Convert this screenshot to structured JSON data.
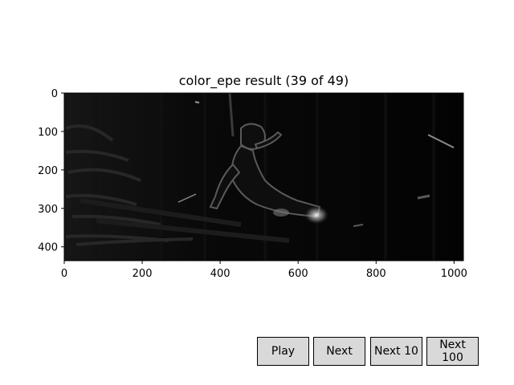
{
  "figure": {
    "title": "color_epe result (39 of 49)",
    "image_description_icon": "error-heatmap-image"
  },
  "axes": {
    "x_ticks": [
      "0",
      "200",
      "400",
      "600",
      "800",
      "1000"
    ],
    "y_ticks": [
      "0",
      "100",
      "200",
      "300",
      "400"
    ],
    "x_tick_values": [
      0,
      200,
      400,
      600,
      800,
      1000
    ],
    "y_tick_values": [
      0,
      100,
      200,
      300,
      400
    ],
    "x_range": [
      0,
      1024
    ],
    "y_range": [
      0,
      436
    ]
  },
  "controls": {
    "play_label": "Play",
    "next_label": "Next",
    "next10_label": "Next 10",
    "next100_label": "Next 100"
  },
  "colors": {
    "background": "#ffffff",
    "button_face": "#d9d9d9",
    "image_dark": "#050505"
  }
}
